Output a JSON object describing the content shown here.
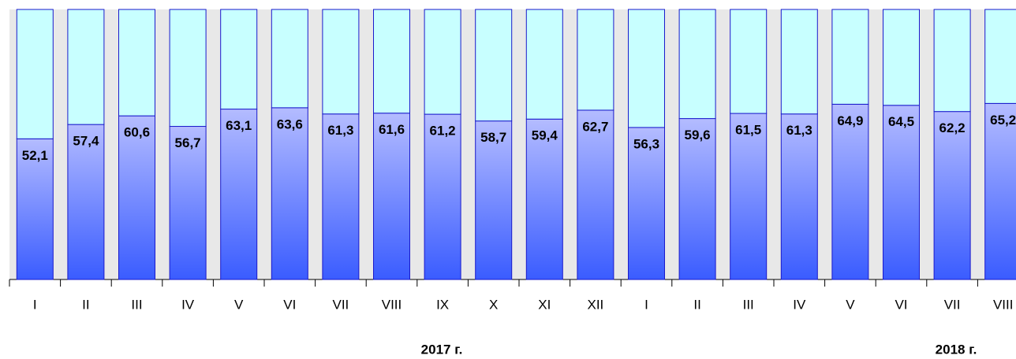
{
  "chart_data": {
    "type": "stacked_bar",
    "categories": [
      "I",
      "II",
      "III",
      "IV",
      "V",
      "VI",
      "VII",
      "VIII",
      "IX",
      "X",
      "XI",
      "XII",
      "I",
      "II",
      "III",
      "IV",
      "V",
      "VI",
      "VII",
      "VIII"
    ],
    "series": [
      {
        "color": "#3a5cff",
        "values": [
          52.1,
          57.4,
          60.6,
          56.7,
          63.1,
          63.6,
          61.3,
          61.6,
          61.2,
          58.7,
          59.4,
          62.7,
          56.3,
          59.6,
          61.5,
          61.3,
          64.9,
          64.5,
          62.2,
          65.2
        ],
        "value_labels": [
          "52,1",
          "57,4",
          "60,6",
          "56,7",
          "63,1",
          "63,6",
          "61,3",
          "61,6",
          "61,2",
          "58,7",
          "59,4",
          "62,7",
          "56,3",
          "59,6",
          "61,5",
          "61,3",
          "64,9",
          "64,5",
          "62,2",
          "65,2"
        ]
      },
      {
        "color": "#c8ffff",
        "values": [
          47.9,
          42.6,
          39.4,
          43.3,
          36.9,
          36.4,
          38.7,
          38.4,
          38.8,
          41.3,
          40.6,
          37.3,
          43.7,
          40.4,
          38.5,
          38.7,
          35.1,
          35.5,
          37.8,
          34.8
        ]
      }
    ],
    "ylim": [
      0,
      100
    ],
    "annotations": [
      "2017 г.",
      "2018 г."
    ]
  }
}
